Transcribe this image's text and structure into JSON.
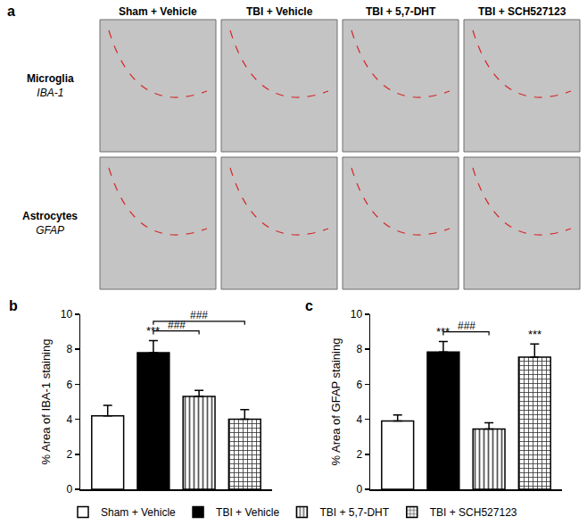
{
  "figure": {
    "panels": [
      "a",
      "b",
      "c"
    ],
    "columns": [
      "Sham + Vehicle",
      "TBI + Vehicle",
      "TBI + 5,7-DHT",
      "TBI + SCH527123"
    ],
    "rows": [
      {
        "label": "Microglia",
        "stain": "IBA-1"
      },
      {
        "label": "Astrocytes",
        "stain": "GFAP"
      }
    ]
  },
  "chart_data": [
    {
      "type": "bar",
      "ylabel": "% Area of IBA-1 staining",
      "ylim": [
        0,
        10
      ],
      "yticks": [
        0,
        2,
        4,
        6,
        8,
        10
      ],
      "tick_labels": "y",
      "legend": "bottom",
      "series": [
        {
          "name": "Sham + Vehicle",
          "color": "#ffffff",
          "marker": "plain",
          "values": [
            4.2
          ],
          "errors": [
            0.6
          ]
        },
        {
          "name": "TBI + Vehicle",
          "color": "#000000",
          "marker": "plain",
          "values": [
            7.8
          ],
          "errors": [
            0.7
          ]
        },
        {
          "name": "TBI + 5,7-DHT",
          "color": "#ffffff",
          "marker": "vertical_stripes",
          "values": [
            5.3
          ],
          "errors": [
            0.35
          ]
        },
        {
          "name": "TBI + SCH527123",
          "color": "#ffffff",
          "marker": "checkered",
          "values": [
            4.0
          ],
          "errors": [
            0.55
          ]
        }
      ],
      "annotations": [
        {
          "text": "***",
          "at": 1
        },
        {
          "text": "###",
          "between": [
            1,
            2
          ]
        },
        {
          "text": "###",
          "between": [
            1,
            3
          ]
        }
      ]
    },
    {
      "type": "bar",
      "ylabel": "% Area of GFAP staining",
      "ylim": [
        0,
        10
      ],
      "yticks": [
        0,
        2,
        4,
        6,
        8,
        10
      ],
      "tick_labels": "y",
      "legend": "bottom",
      "series": [
        {
          "name": "Sham + Vehicle",
          "color": "#ffffff",
          "marker": "plain",
          "values": [
            3.9
          ],
          "errors": [
            0.35
          ]
        },
        {
          "name": "TBI + Vehicle",
          "color": "#000000",
          "marker": "plain",
          "values": [
            7.85
          ],
          "errors": [
            0.6
          ]
        },
        {
          "name": "TBI + 5,7-DHT",
          "color": "#ffffff",
          "marker": "vertical_stripes",
          "values": [
            3.45
          ],
          "errors": [
            0.35
          ]
        },
        {
          "name": "TBI + SCH527123",
          "color": "#ffffff",
          "marker": "checkered",
          "values": [
            7.55
          ],
          "errors": [
            0.75
          ]
        }
      ],
      "annotations": [
        {
          "text": "***",
          "at": 1
        },
        {
          "text": "***",
          "at": 3
        },
        {
          "text": "###",
          "between": [
            1,
            2
          ]
        }
      ]
    }
  ]
}
